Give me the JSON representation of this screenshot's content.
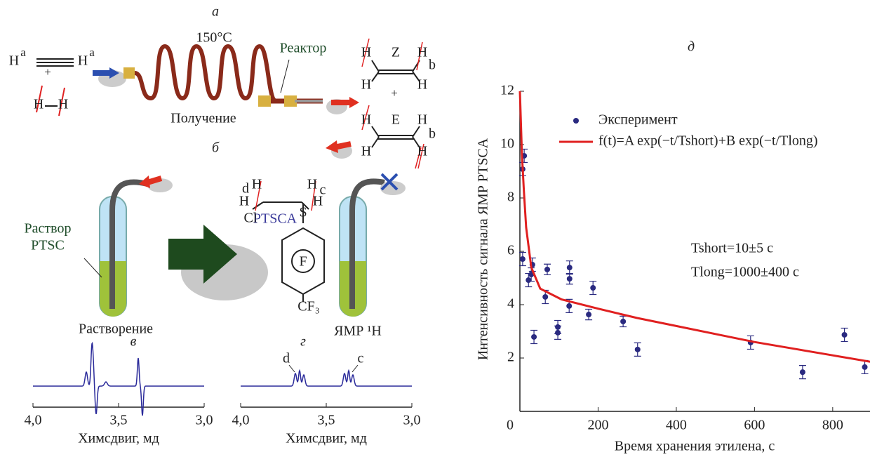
{
  "diagram": {
    "labels": [
      "а",
      "150°C",
      "Реактор",
      "Получение",
      "б",
      "Раствор",
      "PTSC",
      "PTSCA",
      "Растворение",
      "ЯМР ¹H",
      "H",
      "a",
      "H",
      "a",
      "+",
      "H",
      "H",
      "H",
      "Z",
      "H",
      "b",
      "H",
      "H",
      "+",
      "H",
      "E",
      "H",
      "b",
      "H",
      "H",
      "d",
      "H",
      "H",
      "H",
      "c",
      "H",
      "Cl",
      "S",
      "F",
      "CF₃"
    ]
  },
  "chart_data": [
    {
      "type": "scatter",
      "title": "д",
      "xlabel": "Время хранения этилена, с",
      "ylabel": "Интенсивность сигнала ЯМР PTSCA",
      "xlim": [
        0,
        890
      ],
      "ylim": [
        0,
        12
      ],
      "xticks": [
        0,
        200,
        400,
        600,
        800
      ],
      "yticks": [
        2,
        4,
        6,
        8,
        10,
        12
      ],
      "series": [
        {
          "name": "Эксперимент",
          "color": "#2a2a80",
          "x": [
            7,
            11,
            7,
            22,
            29,
            32,
            36,
            70,
            65,
            97,
            97,
            126,
            127,
            127,
            176,
            187,
            264,
            301,
            590,
            723,
            830,
            882
          ],
          "values": [
            9.08,
            9.58,
            5.71,
            4.92,
            5.13,
            5.5,
            2.79,
            5.32,
            4.29,
            3.16,
            2.95,
            3.95,
            4.97,
            5.39,
            3.63,
            4.63,
            3.37,
            2.32,
            2.58,
            1.47,
            2.87,
            1.66
          ],
          "errors": [
            0.25,
            0.25,
            0.25,
            0.25,
            0.25,
            0.25,
            0.25,
            0.2,
            0.25,
            0.25,
            0.25,
            0.25,
            0.2,
            0.25,
            0.2,
            0.25,
            0.2,
            0.25,
            0.25,
            0.25,
            0.25,
            0.25
          ]
        },
        {
          "name": "f(t)=A exp(−t/Tshort)+B exp(−t/Tlong)",
          "color": "#e02020",
          "style": "line",
          "x": [
            0,
            5,
            10,
            16,
            29,
            52,
            106,
            200,
            300,
            400,
            500,
            600,
            700,
            800,
            900
          ],
          "values": [
            12.0,
            9.7,
            8.3,
            6.9,
            5.4,
            4.6,
            4.2,
            3.85,
            3.5,
            3.2,
            2.9,
            2.6,
            2.35,
            2.1,
            1.85
          ]
        }
      ],
      "annotations": [
        "Tshort=10±5 c",
        "Tlong=1000±400 c"
      ]
    },
    {
      "type": "spectrum",
      "title": "в",
      "xlabel": "Химсдвиг, мд",
      "xlim": [
        4.0,
        3.0
      ],
      "xticks": [
        {
          "value": 4.0,
          "label": "4,0"
        },
        {
          "value": 3.5,
          "label": "3,5"
        },
        {
          "value": 3.0,
          "label": "3,0"
        }
      ]
    },
    {
      "type": "spectrum",
      "title": "г",
      "xlabel": "Химсдвиг, мд",
      "xlim": [
        4.0,
        3.0
      ],
      "xticks": [
        {
          "value": 4.0,
          "label": "4,0"
        },
        {
          "value": 3.5,
          "label": "3,5"
        },
        {
          "value": 3.0,
          "label": "3,0"
        }
      ],
      "annotations": [
        "d",
        "c"
      ]
    }
  ]
}
